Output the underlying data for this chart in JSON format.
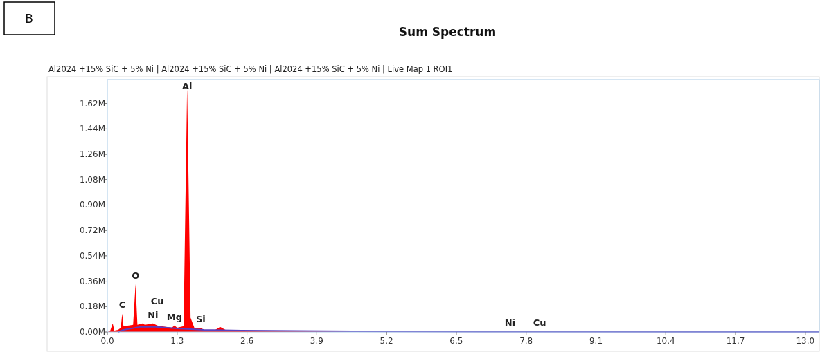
{
  "chart_data": {
    "type": "area",
    "title": "Sum Spectrum",
    "subtitle": "Al2024 +15% SiC + 5% Ni | Al2024 +15% SiC + 5% Ni | Al2024 +15% SiC + 5% Ni | Live Map 1 ROI1",
    "x": [
      0,
      0.05,
      0.1,
      0.13,
      0.2,
      0.25,
      0.277,
      0.3,
      0.4,
      0.48,
      0.525,
      0.56,
      0.65,
      0.7,
      0.85,
      0.93,
      1.0,
      1.2,
      1.25,
      1.3,
      1.42,
      1.486,
      1.55,
      1.62,
      1.74,
      1.8,
      2.0,
      2.1,
      2.2,
      2.6,
      3.5,
      4.2,
      5.2,
      7.5,
      8.05,
      10,
      13.26
    ],
    "series": [
      {
        "color": "#ff0000",
        "values": [
          0,
          5000,
          60000,
          10000,
          15000,
          30000,
          130000,
          40000,
          45000,
          50000,
          340000,
          50000,
          60000,
          50000,
          60000,
          45000,
          40000,
          30000,
          45000,
          30000,
          40000,
          1740000,
          100000,
          30000,
          30000,
          15000,
          12000,
          35000,
          15000,
          10000,
          8000,
          7000,
          5000,
          3000,
          3000,
          2000,
          1000
        ]
      },
      {
        "type": "line",
        "color": "#5a3fc0",
        "x": [
          0.2,
          0.3,
          0.6,
          0.9,
          1.3,
          1.8,
          2.5,
          4,
          7,
          13.26
        ],
        "values": [
          0,
          15000,
          35000,
          35000,
          25000,
          15000,
          10000,
          6000,
          3000,
          1000
        ]
      }
    ],
    "xlim": [
      0,
      13.26
    ],
    "xticks": [
      {
        "value": 0,
        "label": "0.0"
      },
      1.3,
      2.6,
      3.9,
      5.2,
      6.5,
      7.8,
      9.1,
      10.4,
      11.7,
      {
        "value": 13,
        "label": "13.0"
      }
    ],
    "ylim": [
      0,
      1790000
    ],
    "yticks": [
      {
        "value": 0,
        "label": "0.00M"
      },
      {
        "value": 180000,
        "label": "0.18M"
      },
      {
        "value": 360000,
        "label": "0.36M"
      },
      {
        "value": 540000,
        "label": "0.54M"
      },
      {
        "value": 720000,
        "label": "0.72M"
      },
      {
        "value": 900000,
        "label": "0.90M"
      },
      {
        "value": 1080000,
        "label": "1.08M"
      },
      {
        "value": 1260000,
        "label": "1.26M"
      },
      {
        "value": 1440000,
        "label": "1.44M"
      },
      {
        "value": 1620000,
        "label": "1.62M"
      }
    ],
    "grid": false,
    "annotations": [
      "B",
      {
        "text": "Al",
        "x": 1.486,
        "y": 1740000
      },
      {
        "text": "O",
        "x": 0.525,
        "y": 340000
      },
      {
        "text": "C",
        "x": 0.277,
        "y": 130000
      },
      {
        "text": "Ni",
        "x": 0.85,
        "y": 60000
      },
      {
        "text": "Cu",
        "x": 0.93,
        "y": 45000
      },
      {
        "text": "Mg",
        "x": 1.25,
        "y": 45000
      },
      {
        "text": "Si",
        "x": 1.74,
        "y": 30000
      },
      {
        "text": "Ni",
        "x": 7.5,
        "y": 3000
      },
      {
        "text": "Cu",
        "x": 8.05,
        "y": 3000
      }
    ]
  }
}
